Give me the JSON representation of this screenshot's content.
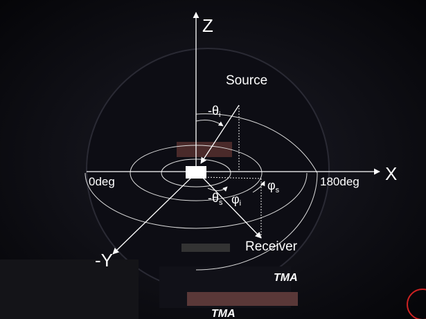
{
  "axes": {
    "z": "Z",
    "x": "X",
    "y": "-Y",
    "x_start": "0deg",
    "x_end": "180deg"
  },
  "labels": {
    "source": "Source",
    "receiver": "Receiver"
  },
  "angles": {
    "theta_i": {
      "symbol": "-θ",
      "sub": "i"
    },
    "theta_s": {
      "symbol": "-θ",
      "sub": "s"
    },
    "phi_i": {
      "symbol": "φ",
      "sub": "i"
    },
    "phi_s": {
      "symbol": "φ",
      "sub": "s"
    }
  },
  "logos": [
    "TMA",
    "TMA"
  ]
}
